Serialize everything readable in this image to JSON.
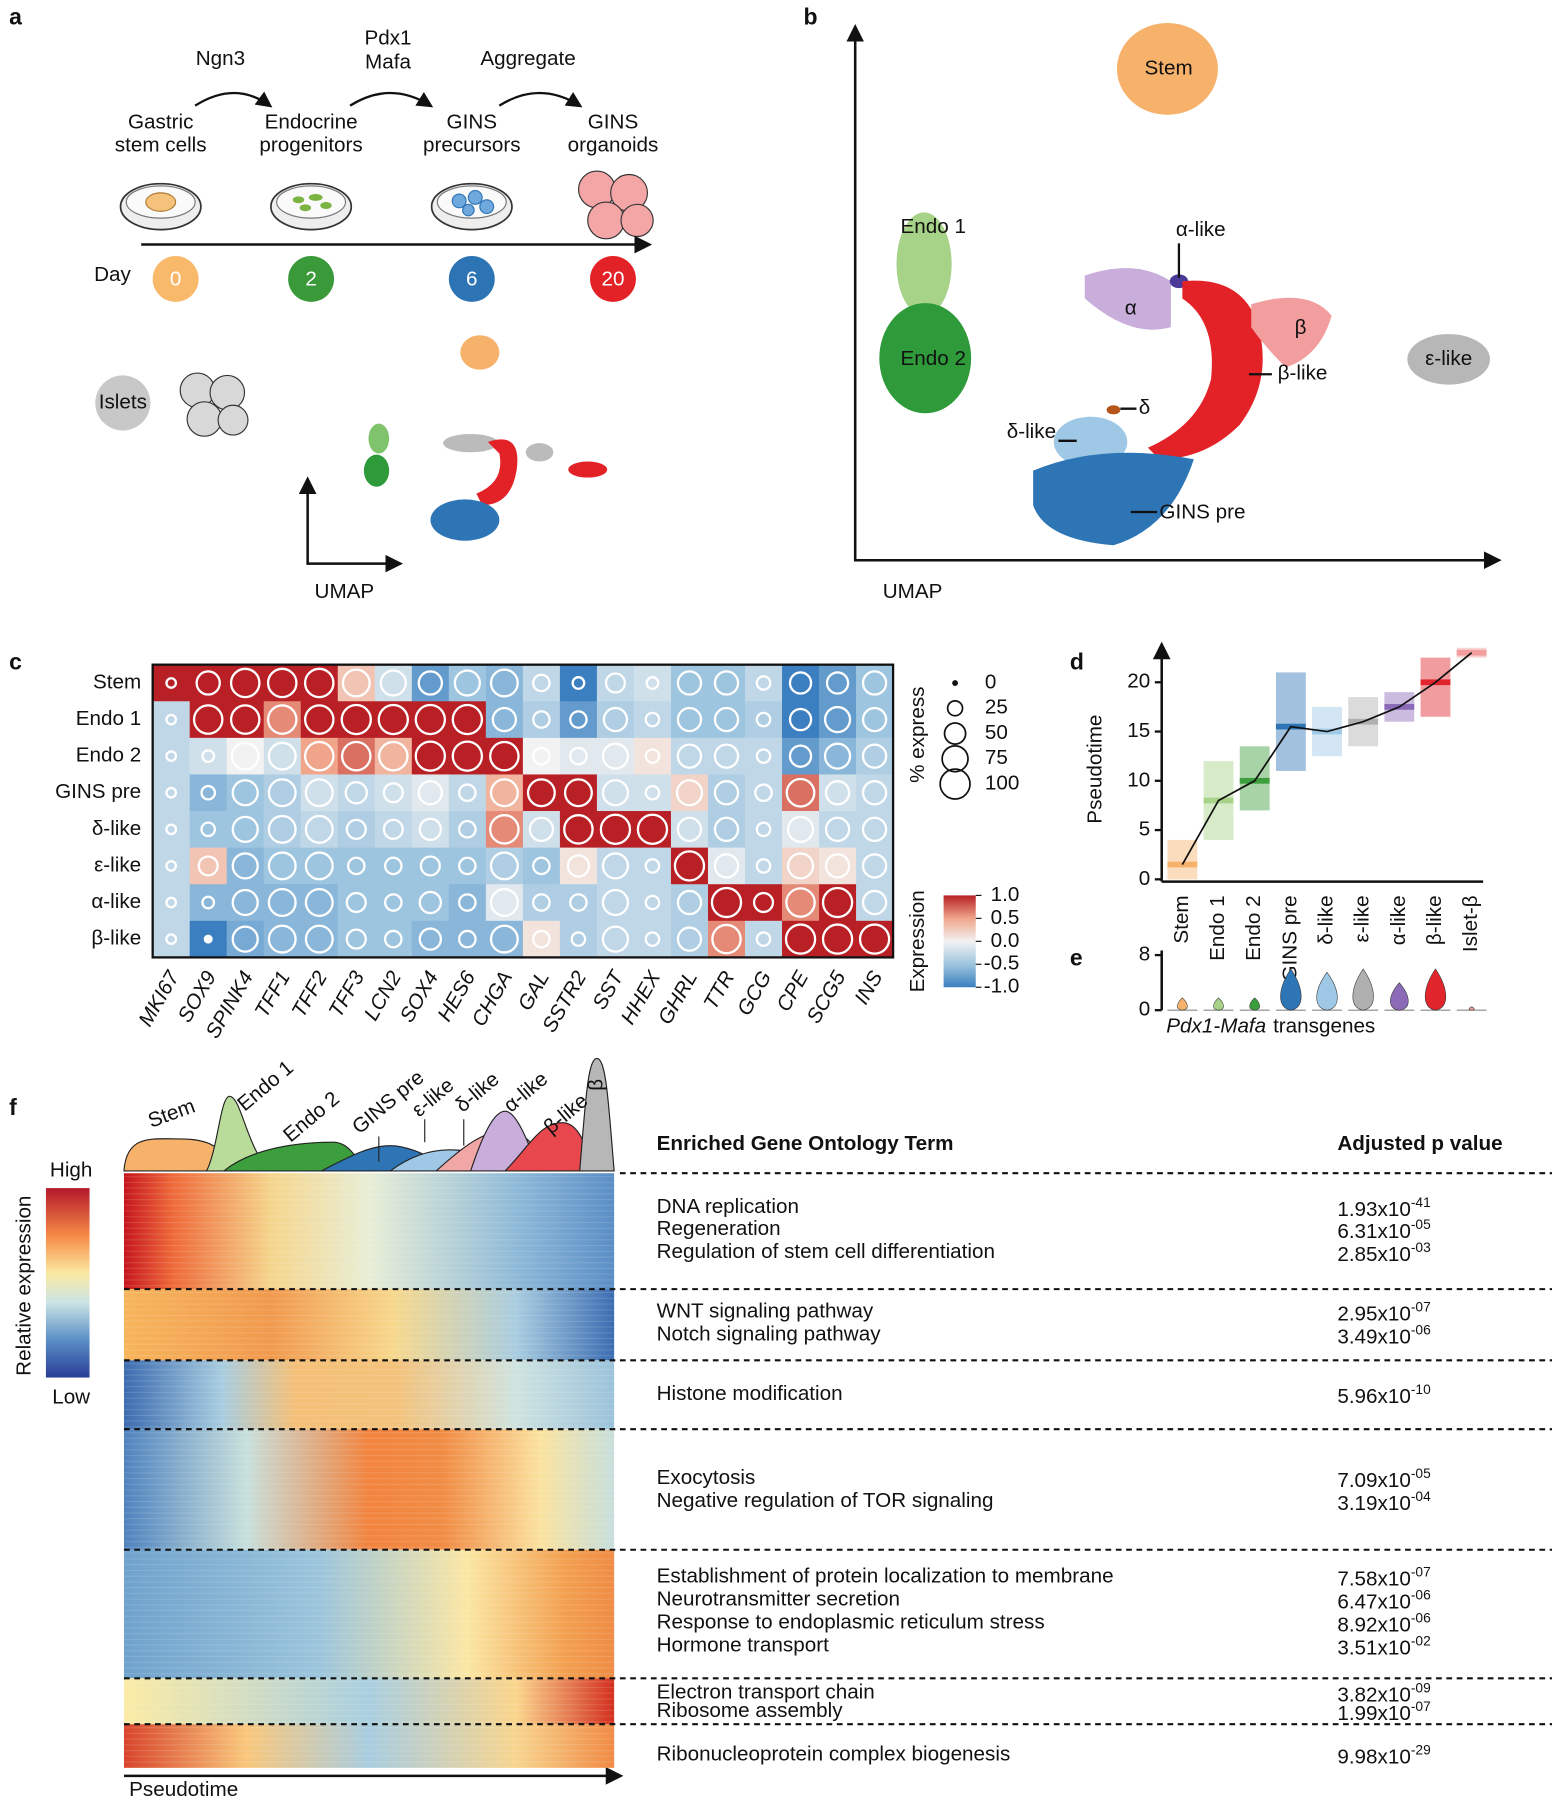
{
  "panel_labels": [
    "a",
    "b",
    "c",
    "d",
    "e",
    "f"
  ],
  "panel_a": {
    "arrows": [
      [
        "Ngn3"
      ],
      [
        "Pdx1",
        "Mafa"
      ],
      [
        "Aggregate"
      ]
    ],
    "stages": [
      [
        "Gastric",
        "stem cells"
      ],
      [
        "Endocrine",
        "progenitors"
      ],
      [
        "GINS",
        "precursors"
      ],
      [
        "GINS",
        "organoids"
      ]
    ],
    "day_label": "Day",
    "days": [
      0,
      2,
      6,
      20
    ],
    "islets": "Islets",
    "umap": "UMAP"
  },
  "panel_b": {
    "clusters": [
      "Stem",
      "Endo 1",
      "Endo 2",
      "α-like",
      "α",
      "β",
      "β-like",
      "ε-like",
      "δ",
      "δ-like",
      "GINS pre"
    ],
    "umap": "UMAP"
  },
  "chart_data": [
    {
      "type": "dotplot",
      "rows": [
        "Stem",
        "Endo 1",
        "Endo 2",
        "GINS pre",
        "δ-like",
        "ε-like",
        "α-like",
        "β-like"
      ],
      "columns": [
        "MKI67",
        "SOX9",
        "SPINK4",
        "TFF1",
        "TFF2",
        "TFF3",
        "LCN2",
        "SOX4",
        "HES6",
        "CHGA",
        "GAL",
        "SSTR2",
        "SST",
        "HHEX",
        "GHRL",
        "TTR",
        "GCG",
        "CPE",
        "SCG5",
        "INS"
      ],
      "values": [
        [
          1,
          1,
          1,
          1,
          1,
          0.3,
          -0.2,
          -0.8,
          -0.5,
          -0.6,
          -0.3,
          -1,
          -0.3,
          -0.2,
          -0.5,
          -0.5,
          -0.3,
          -1,
          -0.8,
          -0.5
        ],
        [
          -0.3,
          1,
          1,
          0.6,
          1,
          1,
          1,
          1,
          1,
          -0.6,
          -0.4,
          -0.8,
          -0.4,
          -0.3,
          -0.5,
          -0.5,
          -0.4,
          -1,
          -0.8,
          -0.5
        ],
        [
          -0.3,
          -0.2,
          0,
          -0.2,
          0.5,
          0.7,
          0.4,
          1,
          1,
          1,
          0,
          -0.1,
          -0.1,
          0.1,
          -0.3,
          -0.3,
          -0.3,
          -0.8,
          -0.6,
          -0.4
        ],
        [
          -0.3,
          -0.6,
          -0.5,
          -0.4,
          -0.2,
          -0.3,
          -0.2,
          -0.1,
          -0.3,
          0.4,
          1,
          1,
          -0.2,
          -0.2,
          0.2,
          -0.4,
          -0.3,
          0.7,
          -0.2,
          -0.3
        ],
        [
          -0.3,
          -0.5,
          -0.5,
          -0.4,
          -0.3,
          -0.4,
          -0.3,
          -0.2,
          -0.4,
          0.6,
          -0.2,
          1,
          1,
          1,
          -0.2,
          -0.4,
          -0.3,
          -0.1,
          -0.3,
          -0.3
        ],
        [
          -0.3,
          0.3,
          -0.6,
          -0.5,
          -0.5,
          -0.5,
          -0.5,
          -0.5,
          -0.5,
          -0.4,
          -0.5,
          0.1,
          -0.3,
          -0.3,
          1,
          -0.1,
          -0.3,
          0.2,
          0.1,
          -0.3
        ],
        [
          -0.3,
          -0.6,
          -0.6,
          -0.6,
          -0.6,
          -0.5,
          -0.5,
          -0.5,
          -0.6,
          -0.1,
          -0.4,
          -0.4,
          -0.3,
          -0.3,
          -0.4,
          1,
          1,
          0.6,
          1,
          -0.3
        ],
        [
          -0.3,
          -1,
          -0.7,
          -0.6,
          -0.6,
          -0.5,
          -0.5,
          -0.6,
          -0.6,
          -0.6,
          0.1,
          -0.4,
          -0.3,
          -0.3,
          -0.4,
          0.6,
          -0.3,
          1,
          1,
          1
        ]
      ],
      "sizes": [
        [
          10,
          60,
          90,
          90,
          90,
          80,
          70,
          60,
          70,
          80,
          30,
          15,
          40,
          15,
          60,
          60,
          20,
          50,
          50,
          60
        ],
        [
          10,
          90,
          90,
          90,
          90,
          95,
          95,
          95,
          95,
          60,
          30,
          30,
          60,
          20,
          60,
          60,
          20,
          50,
          70,
          60
        ],
        [
          10,
          15,
          80,
          80,
          90,
          90,
          90,
          95,
          95,
          90,
          30,
          30,
          70,
          20,
          60,
          60,
          20,
          50,
          70,
          60
        ],
        [
          10,
          20,
          70,
          80,
          80,
          50,
          40,
          60,
          30,
          80,
          80,
          80,
          70,
          20,
          70,
          60,
          30,
          85,
          60,
          60
        ],
        [
          10,
          20,
          70,
          80,
          80,
          40,
          40,
          50,
          30,
          90,
          60,
          90,
          95,
          95,
          60,
          60,
          20,
          70,
          60,
          60
        ],
        [
          10,
          40,
          70,
          80,
          80,
          30,
          30,
          40,
          30,
          80,
          30,
          50,
          70,
          20,
          95,
          60,
          20,
          70,
          60,
          60
        ],
        [
          10,
          15,
          70,
          80,
          80,
          40,
          30,
          50,
          30,
          80,
          30,
          30,
          70,
          20,
          60,
          95,
          40,
          90,
          95,
          60
        ],
        [
          10,
          5,
          70,
          80,
          80,
          40,
          30,
          50,
          30,
          80,
          30,
          20,
          70,
          20,
          60,
          90,
          20,
          95,
          95,
          95
        ]
      ],
      "size_legend": {
        "title": "% express",
        "values": [
          0,
          25,
          50,
          75,
          100
        ]
      },
      "color_legend": {
        "title": "Expression",
        "lim": [
          -1,
          1
        ],
        "ticks": [
          {
            "value": 1,
            "label": "1.0"
          },
          0.5,
          {
            "value": 0,
            "label": "0.0"
          },
          -0.5,
          {
            "value": -1,
            "label": "-1.0"
          }
        ]
      }
    },
    {
      "type": "strip",
      "ylabel": "Pseudotime",
      "categories": [
        "Stem",
        "Endo 1",
        "Endo 2",
        "GINS pre",
        "δ-like",
        "ε-like",
        "α-like",
        "β-like",
        "Islet-β"
      ],
      "values": [
        1.5,
        8,
        10,
        15.5,
        15,
        16,
        17.5,
        20,
        23
      ],
      "ranges": [
        [
          0,
          4
        ],
        [
          4,
          12
        ],
        [
          7,
          13.5
        ],
        [
          11,
          21
        ],
        [
          12.5,
          17.5
        ],
        [
          13.5,
          18.5
        ],
        [
          16,
          19
        ],
        [
          16.5,
          22.5
        ],
        [
          22.5,
          23.5
        ]
      ],
      "colors": [
        "#f6b26b",
        "#a6d388",
        "#3c9e3c",
        "#2e75b6",
        "#9ec8e6",
        "#b0b0b0",
        "#8b6bb8",
        "#e0262c",
        "#f29e9e"
      ],
      "ylim": [
        0,
        24
      ],
      "yticks": [
        0,
        5,
        10,
        15,
        20
      ]
    },
    {
      "type": "violin",
      "xlabel_gene": "Pdx1-Mafa",
      "xlabel": "transgenes",
      "values": [
        1.8,
        1.8,
        1.8,
        6,
        5.5,
        6,
        4,
        6,
        0.5
      ],
      "ylim": [
        0,
        8
      ],
      "yticks": [
        0,
        8
      ]
    }
  ],
  "panel_f": {
    "densities": [
      "Stem",
      "Endo 1",
      "Endo 2",
      "GINS pre",
      "ε-like",
      "δ-like",
      "α-like",
      "β-like",
      "β"
    ],
    "colorbar": {
      "high": "High",
      "low": "Low",
      "title": "Relative expression"
    },
    "xlabel": "Pseudotime",
    "headers": [
      "Enriched Gene Ontology Term",
      "Adjusted p value"
    ],
    "modules": [
      [
        {
          "term": "DNA replication",
          "p": [
            "1.93x10",
            "-41"
          ]
        },
        {
          "term": "Regeneration",
          "p": [
            "6.31x10",
            "-05"
          ]
        },
        {
          "term": "Regulation of stem cell differentiation",
          "p": [
            "2.85x10",
            "-03"
          ]
        }
      ],
      [
        {
          "term": "WNT signaling pathway",
          "p": [
            "2.95x10",
            "-07"
          ]
        },
        {
          "term": "Notch signaling pathway",
          "p": [
            "3.49x10",
            "-06"
          ]
        }
      ],
      [
        {
          "term": "Histone modification",
          "p": [
            "5.96x10",
            "-10"
          ]
        }
      ],
      [
        {
          "term": "Exocytosis",
          "p": [
            "7.09x10",
            "-05"
          ]
        },
        {
          "term": "Negative regulation of TOR signaling",
          "p": [
            "3.19x10",
            "-04"
          ]
        }
      ],
      [
        {
          "term": "Establishment of protein localization to membrane",
          "p": [
            "7.58x10",
            "-07"
          ]
        },
        {
          "term": "Neurotransmitter secretion",
          "p": [
            "6.47x10",
            "-06"
          ]
        },
        {
          "term": "Response to endoplasmic reticulum stress",
          "p": [
            "8.92x10",
            "-06"
          ]
        },
        {
          "term": "Hormone transport",
          "p": [
            "3.51x10",
            "-02"
          ]
        }
      ],
      [
        {
          "term": "Electron transport chain",
          "p": [
            "3.82x10",
            "-09"
          ]
        },
        {
          "term": "Ribosome assembly",
          "p": [
            "1.99x10",
            "-07"
          ]
        }
      ],
      [
        {
          "term": "Ribonucleoprotein complex biogenesis",
          "p": [
            "9.98x10",
            "-29"
          ]
        }
      ]
    ]
  }
}
